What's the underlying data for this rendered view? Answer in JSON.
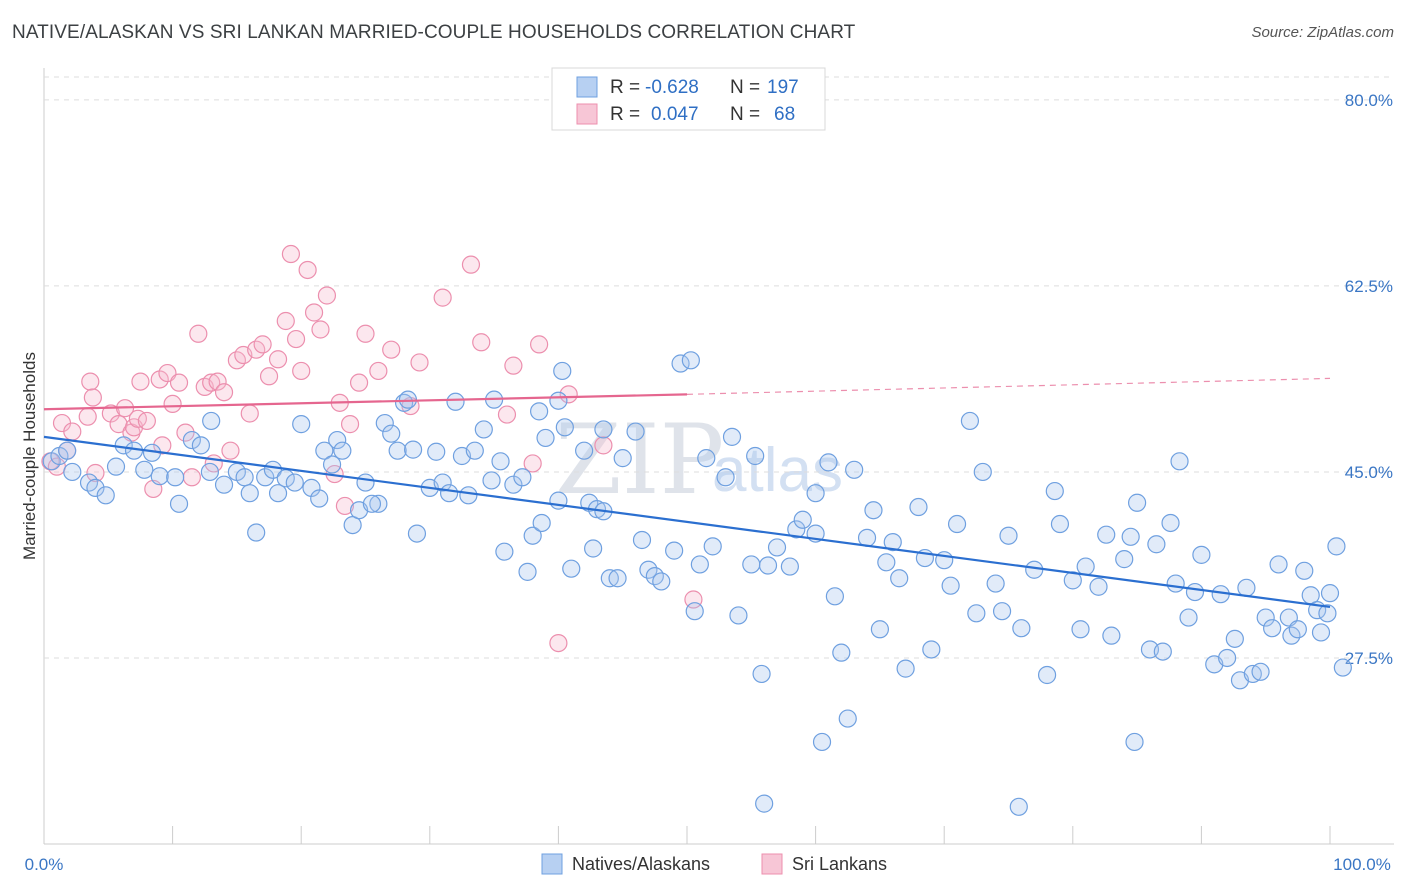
{
  "title": "NATIVE/ALASKAN VS SRI LANKAN MARRIED-COUPLE HOUSEHOLDS CORRELATION CHART",
  "source": "Source: ZipAtlas.com",
  "watermark": {
    "zip": "ZIP",
    "atlas": "atlas"
  },
  "legend": {
    "r_label": "R =",
    "n_label": "N =",
    "rows": [
      {
        "r": "-0.628",
        "n": "197",
        "color": "#6fa0e0"
      },
      {
        "r": "0.047",
        "n": "68",
        "color": "#ec8fae"
      }
    ]
  },
  "bottom_legend": [
    "Natives/Alaskans",
    "Sri Lankans"
  ],
  "chart_data": {
    "type": "scatter",
    "title": "NATIVE/ALASKAN VS SRI LANKAN MARRIED-COUPLE HOUSEHOLDS CORRELATION CHART",
    "xlabel": "",
    "ylabel": "Married-couple Households",
    "xlim": [
      0,
      100
    ],
    "ylim": [
      10,
      83
    ],
    "x_tick_labels": [
      "0.0%",
      "100.0%"
    ],
    "y_ticks": [
      27.5,
      45.0,
      62.5,
      80.0
    ],
    "y_tick_labels": [
      "27.5%",
      "45.0%",
      "62.5%",
      "80.0%"
    ],
    "grid": "horizontal dashed",
    "legend_position": "top-center",
    "series": [
      {
        "name": "Natives/Alaskans",
        "color": "#6fa0e0",
        "trend": {
          "x": [
            0,
            100
          ],
          "y": [
            48.3,
            32.3
          ]
        },
        "points": [
          [
            0.6,
            46.0
          ],
          [
            1.2,
            46.5
          ],
          [
            1.8,
            47.0
          ],
          [
            2.2,
            45.0
          ],
          [
            3.5,
            44.0
          ],
          [
            4.0,
            43.5
          ],
          [
            4.8,
            42.8
          ],
          [
            5.6,
            45.5
          ],
          [
            6.2,
            47.5
          ],
          [
            7.0,
            47.0
          ],
          [
            7.8,
            45.2
          ],
          [
            8.4,
            46.8
          ],
          [
            9.0,
            44.6
          ],
          [
            10.2,
            44.5
          ],
          [
            10.5,
            42.0
          ],
          [
            11.5,
            48.0
          ],
          [
            12.2,
            47.5
          ],
          [
            12.9,
            45.0
          ],
          [
            13.0,
            49.8
          ],
          [
            14.0,
            43.8
          ],
          [
            15.0,
            45.0
          ],
          [
            15.6,
            44.5
          ],
          [
            16.0,
            43.0
          ],
          [
            16.5,
            39.3
          ],
          [
            17.2,
            44.5
          ],
          [
            17.8,
            45.2
          ],
          [
            18.2,
            43.0
          ],
          [
            18.8,
            44.4
          ],
          [
            19.5,
            44.0
          ],
          [
            20.0,
            49.5
          ],
          [
            20.8,
            43.5
          ],
          [
            21.4,
            42.5
          ],
          [
            21.8,
            47.0
          ],
          [
            22.4,
            45.7
          ],
          [
            22.8,
            48.0
          ],
          [
            23.2,
            47.0
          ],
          [
            24.0,
            40.0
          ],
          [
            24.5,
            41.4
          ],
          [
            25.0,
            44.0
          ],
          [
            26.0,
            42.0
          ],
          [
            26.5,
            49.6
          ],
          [
            27.0,
            48.6
          ],
          [
            27.5,
            47.0
          ],
          [
            28.0,
            51.5
          ],
          [
            28.3,
            51.8
          ],
          [
            28.7,
            47.1
          ],
          [
            29.0,
            39.2
          ],
          [
            30.0,
            43.5
          ],
          [
            30.5,
            46.9
          ],
          [
            31.0,
            44.0
          ],
          [
            31.5,
            43.0
          ],
          [
            32.0,
            51.6
          ],
          [
            32.5,
            46.5
          ],
          [
            33.0,
            42.8
          ],
          [
            33.5,
            47.0
          ],
          [
            34.2,
            49.0
          ],
          [
            34.8,
            44.2
          ],
          [
            35.5,
            46.0
          ],
          [
            35.8,
            37.5
          ],
          [
            36.5,
            43.8
          ],
          [
            37.2,
            44.5
          ],
          [
            37.6,
            35.6
          ],
          [
            38.0,
            39.0
          ],
          [
            38.5,
            50.7
          ],
          [
            38.7,
            40.2
          ],
          [
            39.0,
            48.2
          ],
          [
            40.0,
            51.7
          ],
          [
            40.3,
            54.5
          ],
          [
            40.5,
            49.2
          ],
          [
            41.0,
            35.9
          ],
          [
            42.0,
            47.0
          ],
          [
            42.4,
            42.1
          ],
          [
            42.7,
            37.8
          ],
          [
            43.0,
            41.5
          ],
          [
            43.5,
            41.3
          ],
          [
            44.0,
            35.0
          ],
          [
            44.6,
            35.0
          ],
          [
            45.0,
            46.3
          ],
          [
            46.0,
            48.8
          ],
          [
            46.5,
            38.6
          ],
          [
            47.0,
            35.8
          ],
          [
            47.5,
            35.2
          ],
          [
            48.0,
            34.7
          ],
          [
            49.0,
            37.6
          ],
          [
            49.5,
            55.2
          ],
          [
            50.3,
            55.5
          ],
          [
            50.6,
            31.9
          ],
          [
            51.0,
            36.3
          ],
          [
            51.5,
            46.3
          ],
          [
            52.0,
            38.0
          ],
          [
            53.0,
            44.5
          ],
          [
            53.5,
            48.3
          ],
          [
            54.0,
            31.5
          ],
          [
            55.0,
            36.3
          ],
          [
            55.3,
            46.5
          ],
          [
            56.3,
            36.2
          ],
          [
            57.0,
            37.9
          ],
          [
            58.0,
            36.1
          ],
          [
            58.5,
            39.6
          ],
          [
            59.0,
            40.5
          ],
          [
            60.0,
            43.0
          ],
          [
            61.0,
            45.9
          ],
          [
            61.5,
            33.3
          ],
          [
            62.0,
            28.0
          ],
          [
            62.5,
            21.8
          ],
          [
            63.0,
            45.2
          ],
          [
            64.0,
            38.8
          ],
          [
            64.5,
            41.4
          ],
          [
            65.0,
            30.2
          ],
          [
            65.5,
            36.5
          ],
          [
            66.0,
            38.4
          ],
          [
            66.5,
            35.0
          ],
          [
            67.0,
            26.5
          ],
          [
            68.0,
            41.7
          ],
          [
            68.5,
            36.9
          ],
          [
            69.0,
            28.3
          ],
          [
            70.0,
            36.7
          ],
          [
            70.5,
            34.3
          ],
          [
            71.0,
            40.1
          ],
          [
            72.0,
            49.8
          ],
          [
            72.5,
            31.7
          ],
          [
            73.0,
            45.0
          ],
          [
            74.0,
            34.5
          ],
          [
            74.5,
            31.9
          ],
          [
            75.0,
            39.0
          ],
          [
            76.0,
            30.3
          ],
          [
            77.0,
            35.8
          ],
          [
            78.0,
            25.9
          ],
          [
            78.6,
            43.2
          ],
          [
            79.0,
            40.1
          ],
          [
            80.0,
            34.8
          ],
          [
            80.6,
            30.2
          ],
          [
            81.0,
            36.1
          ],
          [
            82.0,
            34.2
          ],
          [
            82.6,
            39.1
          ],
          [
            83.0,
            29.6
          ],
          [
            84.0,
            36.8
          ],
          [
            84.5,
            38.9
          ],
          [
            85.0,
            42.1
          ],
          [
            86.0,
            28.3
          ],
          [
            86.5,
            38.2
          ],
          [
            87.0,
            28.1
          ],
          [
            87.6,
            40.2
          ],
          [
            88.0,
            34.5
          ],
          [
            88.3,
            46.0
          ],
          [
            89.0,
            31.3
          ],
          [
            89.5,
            33.7
          ],
          [
            90.0,
            37.2
          ],
          [
            91.0,
            26.9
          ],
          [
            91.5,
            33.5
          ],
          [
            92.0,
            27.5
          ],
          [
            92.6,
            29.3
          ],
          [
            93.0,
            25.4
          ],
          [
            93.5,
            34.1
          ],
          [
            94.0,
            26.0
          ],
          [
            94.6,
            26.2
          ],
          [
            95.0,
            31.3
          ],
          [
            95.5,
            30.3
          ],
          [
            96.0,
            36.3
          ],
          [
            96.8,
            31.3
          ],
          [
            97.0,
            29.6
          ],
          [
            97.5,
            30.2
          ],
          [
            98.0,
            35.7
          ],
          [
            98.5,
            33.4
          ],
          [
            99.0,
            32.0
          ],
          [
            99.3,
            29.9
          ],
          [
            99.8,
            31.7
          ],
          [
            100.0,
            33.6
          ],
          [
            100.5,
            38.0
          ],
          [
            101.0,
            26.6
          ],
          [
            35.0,
            51.8
          ],
          [
            40.0,
            42.3
          ],
          [
            43.5,
            49.0
          ],
          [
            60.5,
            19.6
          ],
          [
            56.0,
            13.8
          ],
          [
            60.0,
            39.2
          ],
          [
            55.8,
            26.0
          ],
          [
            75.8,
            13.5
          ],
          [
            84.8,
            19.6
          ],
          [
            25.5,
            42.0
          ]
        ]
      },
      {
        "name": "Sri Lankans",
        "color": "#ec8fae",
        "trend": {
          "x": [
            0,
            50
          ],
          "y": [
            50.9,
            52.3
          ]
        },
        "dashed_extension": {
          "x": [
            50,
            100
          ],
          "y": [
            52.3,
            53.8
          ]
        },
        "points": [
          [
            0.5,
            46.0
          ],
          [
            1.0,
            45.5
          ],
          [
            1.4,
            49.6
          ],
          [
            1.8,
            47.0
          ],
          [
            2.2,
            48.8
          ],
          [
            3.4,
            50.2
          ],
          [
            3.6,
            53.5
          ],
          [
            3.8,
            52.0
          ],
          [
            5.2,
            50.5
          ],
          [
            5.8,
            49.5
          ],
          [
            6.3,
            51.0
          ],
          [
            6.8,
            48.7
          ],
          [
            7.0,
            49.2
          ],
          [
            7.3,
            50.0
          ],
          [
            7.5,
            53.5
          ],
          [
            8.0,
            49.8
          ],
          [
            8.5,
            43.4
          ],
          [
            9.0,
            53.7
          ],
          [
            9.2,
            47.5
          ],
          [
            9.6,
            54.3
          ],
          [
            10.0,
            51.4
          ],
          [
            10.5,
            53.4
          ],
          [
            11.0,
            48.7
          ],
          [
            11.5,
            44.5
          ],
          [
            12.0,
            58.0
          ],
          [
            12.5,
            53.0
          ],
          [
            13.0,
            53.4
          ],
          [
            13.2,
            45.8
          ],
          [
            13.5,
            53.5
          ],
          [
            14.0,
            52.5
          ],
          [
            14.5,
            47.0
          ],
          [
            15.0,
            55.5
          ],
          [
            15.5,
            56.0
          ],
          [
            16.0,
            50.5
          ],
          [
            16.5,
            56.5
          ],
          [
            17.0,
            57.0
          ],
          [
            17.5,
            54.0
          ],
          [
            18.2,
            55.6
          ],
          [
            18.8,
            59.2
          ],
          [
            19.2,
            65.5
          ],
          [
            19.6,
            57.5
          ],
          [
            20.0,
            54.5
          ],
          [
            20.5,
            64.0
          ],
          [
            21.0,
            60.0
          ],
          [
            21.5,
            58.4
          ],
          [
            22.0,
            61.6
          ],
          [
            22.6,
            44.8
          ],
          [
            23.0,
            51.5
          ],
          [
            23.4,
            41.8
          ],
          [
            23.8,
            49.5
          ],
          [
            24.5,
            53.4
          ],
          [
            25.0,
            58.0
          ],
          [
            26.0,
            54.5
          ],
          [
            27.0,
            56.5
          ],
          [
            28.5,
            51.2
          ],
          [
            29.2,
            55.3
          ],
          [
            31.0,
            61.4
          ],
          [
            33.2,
            64.5
          ],
          [
            34.0,
            57.2
          ],
          [
            36.0,
            50.4
          ],
          [
            36.5,
            55.0
          ],
          [
            38.5,
            57.0
          ],
          [
            38.0,
            45.8
          ],
          [
            40.0,
            28.9
          ],
          [
            50.5,
            33.0
          ],
          [
            43.5,
            47.5
          ],
          [
            40.8,
            52.3
          ],
          [
            4.0,
            44.9
          ]
        ]
      }
    ]
  }
}
